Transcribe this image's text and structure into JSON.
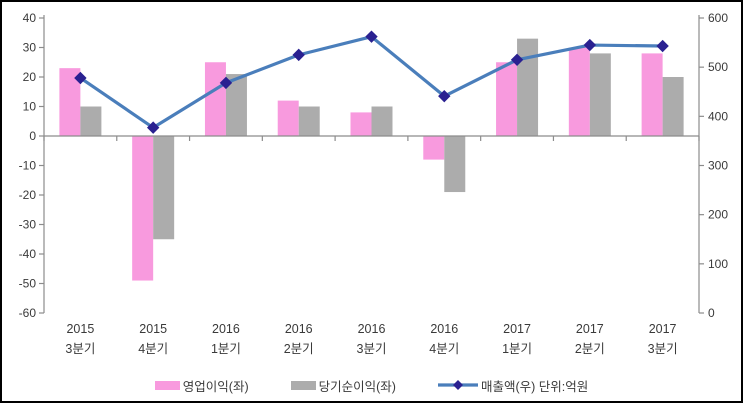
{
  "chart_data": {
    "type": "bar+line combo",
    "title": "",
    "categories": [
      {
        "line1": "2015",
        "line2": "3분기"
      },
      {
        "line1": "2015",
        "line2": "4분기"
      },
      {
        "line1": "2016",
        "line2": "1분기"
      },
      {
        "line1": "2016",
        "line2": "2분기"
      },
      {
        "line1": "2016",
        "line2": "3분기"
      },
      {
        "line1": "2016",
        "line2": "4분기"
      },
      {
        "line1": "2017",
        "line2": "1분기"
      },
      {
        "line1": "2017",
        "line2": "2분기"
      },
      {
        "line1": "2017",
        "line2": "3분기"
      }
    ],
    "series": [
      {
        "name": "영업이익(좌)",
        "type": "bar",
        "axis": "left",
        "color": "#f89ade",
        "values": [
          23,
          -49,
          25,
          12,
          8,
          -8,
          25,
          30,
          28
        ]
      },
      {
        "name": "당기순이익(좌)",
        "type": "bar",
        "axis": "left",
        "color": "#acacac",
        "values": [
          10,
          -35,
          21,
          10,
          10,
          -19,
          33,
          28,
          20
        ]
      },
      {
        "name": "매출액(우) 단위:억원",
        "type": "line",
        "axis": "right",
        "color": "#4a7ebb",
        "marker_color": "#2a2191",
        "values": [
          478,
          377,
          468,
          525,
          562,
          441,
          515,
          545,
          543
        ]
      }
    ],
    "left_axis": {
      "min": -60,
      "max": 40,
      "step": 10,
      "ticks": [
        40,
        30,
        20,
        10,
        0,
        -10,
        -20,
        -30,
        -40,
        -50,
        -60
      ]
    },
    "right_axis": {
      "min": 0,
      "max": 600,
      "step": 100,
      "ticks": [
        600,
        500,
        400,
        300,
        200,
        100,
        0
      ]
    },
    "grid": false,
    "legend_position": "bottom",
    "axis_color": "#8c8c8c",
    "text_color": "#3a3a3a",
    "background": "#ffffff",
    "border_color": "#000000"
  }
}
